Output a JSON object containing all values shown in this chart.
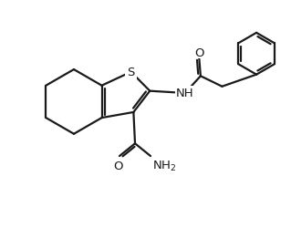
{
  "bg_color": "#ffffff",
  "line_color": "#1a1a1a",
  "line_width": 1.6,
  "fig_width": 3.19,
  "fig_height": 2.51,
  "dpi": 100,
  "xlim": [
    0,
    9.5
  ],
  "ylim": [
    0,
    7.5
  ]
}
